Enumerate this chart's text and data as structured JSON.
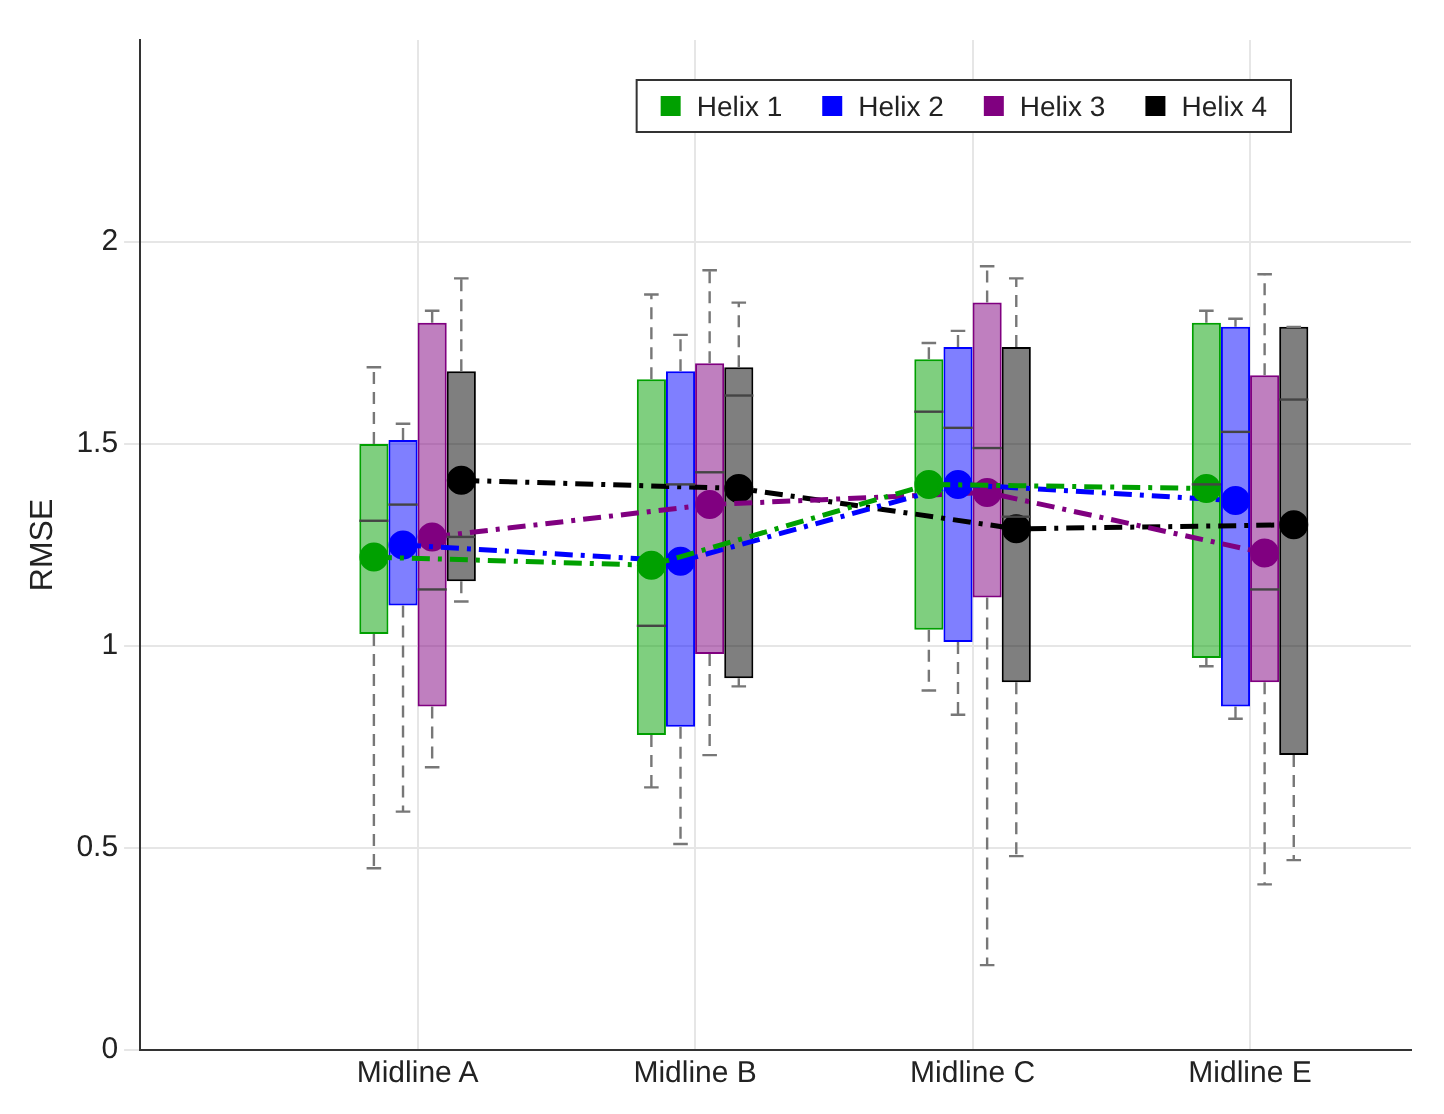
{
  "chart_data": {
    "type": "box",
    "ylabel": "RMSE",
    "categories": [
      "Midline A",
      "Midline B",
      "Midline C",
      "Midline E"
    ],
    "ylim": [
      0,
      2.5
    ],
    "yticks": [
      0,
      0.5,
      1,
      1.5,
      2
    ],
    "grid": true,
    "legend": "top right",
    "marker": "circle",
    "line_style": "dashed",
    "series": [
      {
        "name": "Helix 1",
        "color": "#00a000",
        "boxes": [
          {
            "low": 0.45,
            "q1": 1.03,
            "median": 1.31,
            "q3": 1.5,
            "high": 1.69
          },
          {
            "low": 0.65,
            "q1": 0.78,
            "median": 1.05,
            "q3": 1.66,
            "high": 1.87
          },
          {
            "low": 0.89,
            "q1": 1.04,
            "median": 1.58,
            "q3": 1.71,
            "high": 1.75
          },
          {
            "low": 0.95,
            "q1": 0.97,
            "median": 1.4,
            "q3": 1.8,
            "high": 1.83
          }
        ]
      },
      {
        "name": "Helix 2",
        "color": "#0000ff",
        "boxes": [
          {
            "low": 0.59,
            "q1": 1.1,
            "median": 1.35,
            "q3": 1.51,
            "high": 1.55
          },
          {
            "low": 0.51,
            "q1": 0.8,
            "median": 1.4,
            "q3": 1.68,
            "high": 1.77
          },
          {
            "low": 0.83,
            "q1": 1.01,
            "median": 1.54,
            "q3": 1.74,
            "high": 1.78
          },
          {
            "low": 0.82,
            "q1": 0.85,
            "median": 1.53,
            "q3": 1.79,
            "high": 1.81
          }
        ]
      },
      {
        "name": "Helix 3",
        "color": "#800080",
        "boxes": [
          {
            "low": 0.7,
            "q1": 0.85,
            "median": 1.14,
            "q3": 1.8,
            "high": 1.83
          },
          {
            "low": 0.73,
            "q1": 0.98,
            "median": 1.43,
            "q3": 1.7,
            "high": 1.93
          },
          {
            "low": 0.21,
            "q1": 1.12,
            "median": 1.49,
            "q3": 1.85,
            "high": 1.94
          },
          {
            "low": 0.41,
            "q1": 0.91,
            "median": 1.14,
            "q3": 1.67,
            "high": 1.92
          }
        ]
      },
      {
        "name": "Helix 4",
        "color": "#000000",
        "boxes": [
          {
            "low": 1.11,
            "q1": 1.16,
            "median": 1.27,
            "q3": 1.68,
            "high": 1.91
          },
          {
            "low": 0.9,
            "q1": 0.92,
            "median": 1.62,
            "q3": 1.69,
            "high": 1.85
          },
          {
            "low": 0.48,
            "q1": 0.91,
            "median": 1.32,
            "q3": 1.74,
            "high": 1.91
          },
          {
            "low": 0.47,
            "q1": 0.73,
            "median": 1.61,
            "q3": 1.79,
            "high": 1.79
          }
        ]
      },
      {
        "type": "line",
        "color": "#00a000",
        "values": [
          1.22,
          1.2,
          1.4,
          1.39
        ]
      },
      {
        "type": "line",
        "color": "#0000ff",
        "values": [
          1.25,
          1.21,
          1.4,
          1.36
        ]
      },
      {
        "type": "line",
        "color": "#800080",
        "values": [
          1.27,
          1.35,
          1.38,
          1.23
        ]
      },
      {
        "type": "line",
        "color": "#000000",
        "values": [
          1.41,
          1.39,
          1.29,
          1.3
        ]
      }
    ]
  }
}
